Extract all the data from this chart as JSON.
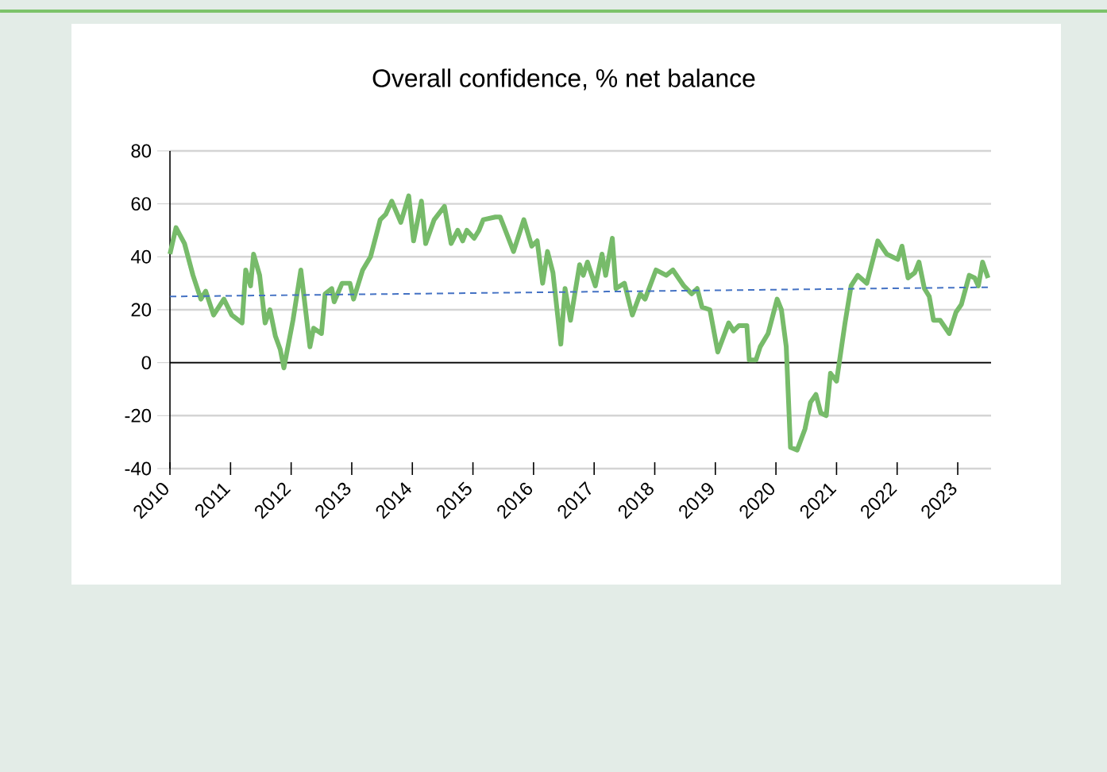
{
  "chart_data": {
    "type": "line",
    "title": "Overall confidence, % net balance",
    "xlim": [
      2010,
      2023.55
    ],
    "xticks": [
      2010,
      2011,
      2012,
      2013,
      2014,
      2015,
      2016,
      2017,
      2018,
      2019,
      2020,
      2021,
      2022,
      2023
    ],
    "ylim": [
      -40,
      80
    ],
    "yticks": [
      -40,
      -20,
      0,
      20,
      40,
      60,
      80
    ],
    "grid": "y",
    "legend": false,
    "marker": "none",
    "series": [
      {
        "color": "#77bb6a",
        "line_style": "solid",
        "x": [
          2010.0,
          2010.1,
          2010.24,
          2010.38,
          2010.51,
          2010.59,
          2010.72,
          2010.89,
          2011.02,
          2011.19,
          2011.25,
          2011.33,
          2011.38,
          2011.48,
          2011.57,
          2011.65,
          2011.74,
          2011.82,
          2011.88,
          2012.03,
          2012.16,
          2012.31,
          2012.37,
          2012.5,
          2012.56,
          2012.67,
          2012.71,
          2012.84,
          2012.97,
          2013.03,
          2013.18,
          2013.31,
          2013.47,
          2013.56,
          2013.66,
          2013.81,
          2013.94,
          2014.02,
          2014.15,
          2014.22,
          2014.36,
          2014.53,
          2014.64,
          2014.75,
          2014.83,
          2014.9,
          2015.02,
          2015.1,
          2015.17,
          2015.37,
          2015.45,
          2015.67,
          2015.84,
          2015.97,
          2016.06,
          2016.15,
          2016.23,
          2016.32,
          2016.45,
          2016.52,
          2016.61,
          2016.76,
          2016.82,
          2016.89,
          2017.02,
          2017.13,
          2017.19,
          2017.3,
          2017.36,
          2017.5,
          2017.63,
          2017.76,
          2017.84,
          2018.02,
          2018.19,
          2018.3,
          2018.48,
          2018.61,
          2018.7,
          2018.78,
          2018.91,
          2019.04,
          2019.22,
          2019.3,
          2019.39,
          2019.52,
          2019.56,
          2019.67,
          2019.74,
          2019.87,
          2020.02,
          2020.09,
          2020.17,
          2020.24,
          2020.35,
          2020.48,
          2020.57,
          2020.66,
          2020.74,
          2020.83,
          2020.9,
          2021.0,
          2021.14,
          2021.24,
          2021.35,
          2021.5,
          2021.68,
          2021.83,
          2022.01,
          2022.08,
          2022.18,
          2022.29,
          2022.36,
          2022.45,
          2022.53,
          2022.6,
          2022.71,
          2022.86,
          2022.97,
          2023.06,
          2023.19,
          2023.28,
          2023.34,
          2023.41,
          2023.5
        ],
        "values": [
          41,
          51,
          45,
          33,
          24,
          27,
          18,
          24,
          18,
          15,
          35,
          29,
          41,
          33,
          15,
          20,
          10,
          5,
          -2,
          16,
          35,
          6,
          13,
          11,
          26,
          28,
          23,
          30,
          30,
          24,
          35,
          40,
          54,
          56,
          61,
          53,
          63,
          46,
          61,
          45,
          54,
          59,
          45,
          50,
          46,
          50,
          47,
          50,
          54,
          55,
          55,
          42,
          54,
          44,
          46,
          30,
          42,
          34,
          7,
          28,
          16,
          37,
          33,
          38,
          29,
          41,
          33,
          47,
          28,
          30,
          18,
          26,
          24,
          35,
          33,
          35,
          29,
          26,
          28,
          21,
          20,
          4,
          15,
          12,
          14,
          14,
          1,
          1,
          6,
          11,
          24,
          20,
          6,
          -32,
          -33,
          -25,
          -15,
          -12,
          -19,
          -20,
          -4,
          -7,
          15,
          29,
          33,
          30,
          46,
          41,
          39,
          44,
          32,
          34,
          38,
          28,
          25,
          16,
          16,
          11,
          19,
          22,
          33,
          32,
          29,
          38,
          32
        ]
      },
      {
        "type": "line",
        "color": "#4472c4",
        "line_style": "dashed",
        "x": [
          2010,
          2023.55
        ],
        "values": [
          25,
          28.5
        ]
      }
    ]
  }
}
